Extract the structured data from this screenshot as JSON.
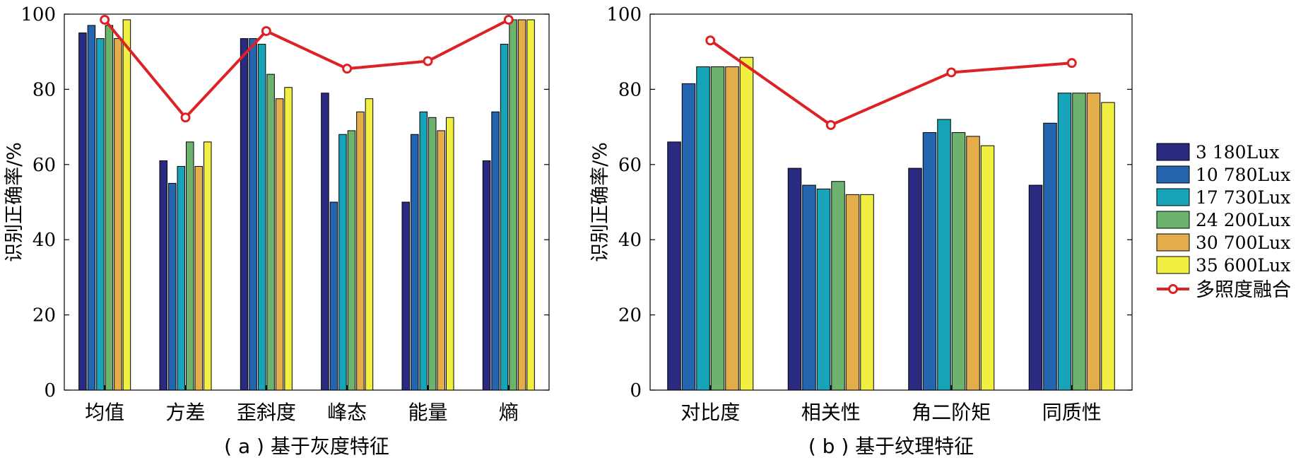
{
  "chart_data": [
    {
      "type": "bar",
      "panel_id": "a",
      "caption": "( a ) 基于灰度特征",
      "ylabel": "识别正确率/%",
      "xlabel": "",
      "ylim": [
        0,
        100
      ],
      "yticks": [
        0,
        20,
        40,
        60,
        80,
        100
      ],
      "grid": false,
      "categories": [
        "均值",
        "方差",
        "歪斜度",
        "峰态",
        "能量",
        "熵"
      ],
      "series": [
        {
          "name": "3 180Lux",
          "color": "#2a2a80",
          "values": [
            95,
            61,
            93.5,
            79,
            50,
            61
          ]
        },
        {
          "name": "10 780Lux",
          "color": "#2465b0",
          "values": [
            97,
            55,
            93.5,
            50,
            68,
            74
          ]
        },
        {
          "name": "17 730Lux",
          "color": "#17a3b8",
          "values": [
            93.5,
            59.5,
            92,
            68,
            74,
            92
          ]
        },
        {
          "name": "24 200Lux",
          "color": "#6db36d",
          "values": [
            97,
            66,
            84,
            69,
            72.5,
            98.5
          ]
        },
        {
          "name": "30 700Lux",
          "color": "#e3ad4b",
          "values": [
            93.5,
            59.5,
            77.5,
            74,
            69,
            98.5
          ]
        },
        {
          "name": "35 600Lux",
          "color": "#f0ef42",
          "values": [
            98.5,
            66,
            80.5,
            77.5,
            72.5,
            98.5
          ]
        }
      ],
      "line": {
        "name": "多照度融合",
        "color": "#dd2226",
        "values": [
          98.5,
          72.5,
          95.5,
          85.5,
          87.5,
          98.5
        ]
      }
    },
    {
      "type": "bar",
      "panel_id": "b",
      "caption": "( b ) 基于纹理特征",
      "ylabel": "识别正确率/%",
      "xlabel": "",
      "ylim": [
        0,
        100
      ],
      "yticks": [
        0,
        20,
        40,
        60,
        80,
        100
      ],
      "grid": false,
      "categories": [
        "对比度",
        "相关性",
        "角二阶矩",
        "同质性"
      ],
      "series": [
        {
          "name": "3 180Lux",
          "color": "#2a2a80",
          "values": [
            66,
            59,
            59,
            54.5
          ]
        },
        {
          "name": "10 780Lux",
          "color": "#2465b0",
          "values": [
            81.5,
            54.5,
            68.5,
            71
          ]
        },
        {
          "name": "17 730Lux",
          "color": "#17a3b8",
          "values": [
            86,
            53.5,
            72,
            79
          ]
        },
        {
          "name": "24 200Lux",
          "color": "#6db36d",
          "values": [
            86,
            55.5,
            68.5,
            79
          ]
        },
        {
          "name": "30 700Lux",
          "color": "#e3ad4b",
          "values": [
            86,
            52,
            67.5,
            79
          ]
        },
        {
          "name": "35 600Lux",
          "color": "#f0ef42",
          "values": [
            88.5,
            52,
            65,
            76.5
          ]
        }
      ],
      "line": {
        "name": "多照度融合",
        "color": "#dd2226",
        "values": [
          93,
          70.5,
          84.5,
          87
        ]
      }
    }
  ],
  "legend": {
    "placement": "right",
    "items": [
      {
        "label": "3 180Lux",
        "color": "#2a2a80",
        "kind": "bar"
      },
      {
        "label": "10 780Lux",
        "color": "#2465b0",
        "kind": "bar"
      },
      {
        "label": "17 730Lux",
        "color": "#17a3b8",
        "kind": "bar"
      },
      {
        "label": "24 200Lux",
        "color": "#6db36d",
        "kind": "bar"
      },
      {
        "label": "30 700Lux",
        "color": "#e3ad4b",
        "kind": "bar"
      },
      {
        "label": "35 600Lux",
        "color": "#f0ef42",
        "kind": "bar"
      },
      {
        "label": "多照度融合",
        "color": "#dd2226",
        "kind": "line"
      }
    ]
  }
}
